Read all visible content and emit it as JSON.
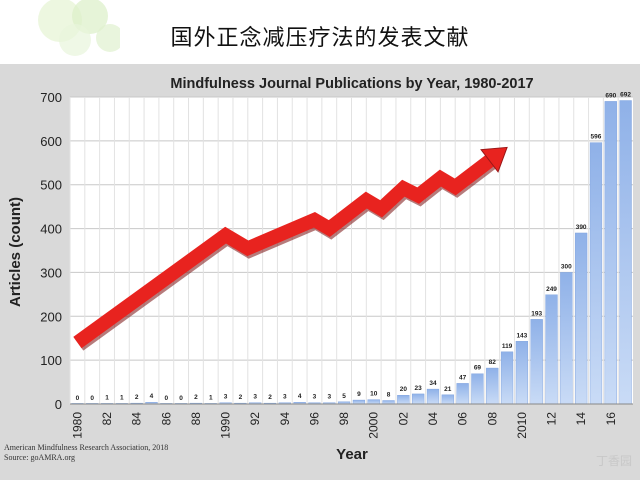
{
  "slide": {
    "title": "国外正念减压疗法的发表文献",
    "watermark": "丁香园"
  },
  "source": {
    "line1": "American Mindfulness Research Association, 2018",
    "line2": "Source: goAMRA.org"
  },
  "chart_data": {
    "type": "bar",
    "title": "Mindfulness Journal Publications by Year, 1980-2017",
    "xlabel": "Year",
    "ylabel": "Articles (count)",
    "ylim": [
      0,
      700
    ],
    "yticks": [
      0,
      100,
      200,
      300,
      400,
      500,
      600,
      700
    ],
    "years": [
      1980,
      1981,
      1982,
      1983,
      1984,
      1985,
      1986,
      1987,
      1988,
      1989,
      1990,
      1991,
      1992,
      1993,
      1994,
      1995,
      1996,
      1997,
      1998,
      1999,
      2000,
      2001,
      2002,
      2003,
      2004,
      2005,
      2006,
      2007,
      2008,
      2009,
      2010,
      2011,
      2012,
      2013,
      2014,
      2015,
      2016,
      2017
    ],
    "values": [
      0,
      0,
      1,
      1,
      2,
      4,
      0,
      0,
      2,
      1,
      3,
      2,
      3,
      2,
      3,
      4,
      3,
      3,
      5,
      9,
      10,
      8,
      20,
      23,
      34,
      21,
      47,
      69,
      82,
      119,
      143,
      193,
      249,
      300,
      390,
      596,
      690,
      692
    ],
    "xtick_labels": [
      {
        "year": 1980,
        "label": "1980"
      },
      {
        "year": 1982,
        "label": "82"
      },
      {
        "year": 1984,
        "label": "84"
      },
      {
        "year": 1986,
        "label": "86"
      },
      {
        "year": 1988,
        "label": "88"
      },
      {
        "year": 1990,
        "label": "1990"
      },
      {
        "year": 1992,
        "label": "92"
      },
      {
        "year": 1994,
        "label": "94"
      },
      {
        "year": 1996,
        "label": "96"
      },
      {
        "year": 1998,
        "label": "98"
      },
      {
        "year": 2000,
        "label": "2000"
      },
      {
        "year": 2002,
        "label": "02"
      },
      {
        "year": 2004,
        "label": "04"
      },
      {
        "year": 2006,
        "label": "06"
      },
      {
        "year": 2008,
        "label": "08"
      },
      {
        "year": 2010,
        "label": "2010"
      },
      {
        "year": 2012,
        "label": "12"
      },
      {
        "year": 2014,
        "label": "14"
      },
      {
        "year": 2016,
        "label": "16"
      }
    ],
    "grid": true,
    "bar_color": "#8fb1e8",
    "arrow_color": "#e8231f",
    "arrow_points": [
      [
        1980,
        140
      ],
      [
        1990,
        385
      ],
      [
        1991.5,
        355
      ],
      [
        1996,
        420
      ],
      [
        1997,
        400
      ],
      [
        1999.5,
        465
      ],
      [
        2000.5,
        445
      ],
      [
        2002,
        492
      ],
      [
        2003,
        475
      ],
      [
        2004.5,
        515
      ],
      [
        2005.5,
        495
      ],
      [
        2009,
        585
      ]
    ]
  }
}
